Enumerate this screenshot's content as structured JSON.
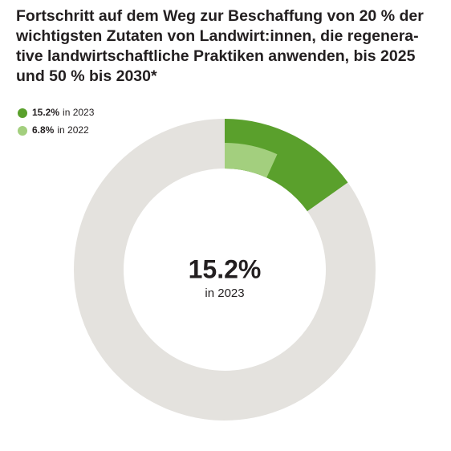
{
  "chart_data": {
    "type": "donut",
    "title": "Fortschritt auf dem Weg zur Beschaffung von 20 % der wichtigsten Zutaten von Landwirt:innen, die regenera­tive landwirtschaftliche Praktiken anwenden, bis 2025 und 50 % bis 2030*",
    "series": [
      {
        "name": "in 2023",
        "color": "#5aa02c",
        "values": [
          15.2
        ],
        "value_labels": [
          "15.2%"
        ]
      },
      {
        "name": "in 2022",
        "color": "#a3cf7e",
        "values": [
          6.8
        ],
        "value_labels": [
          "6.8%"
        ]
      }
    ],
    "track_color": "#e4e2de"
  }
}
